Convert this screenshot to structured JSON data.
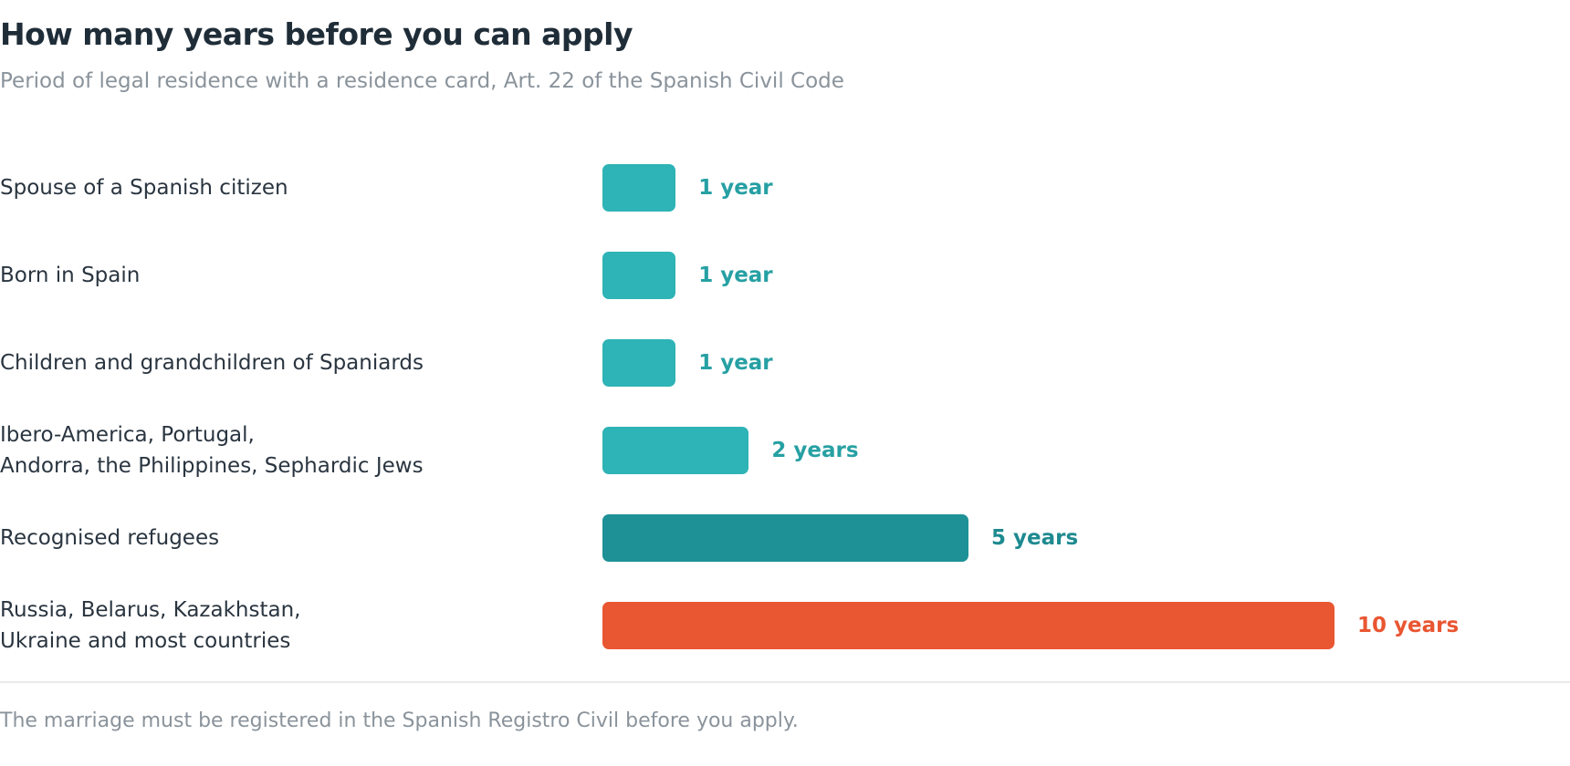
{
  "header": {
    "title": "How many years before you can apply",
    "subtitle": "Period of legal residence with a residence card, Art. 22 of the Spanish Civil Code"
  },
  "chart_data": {
    "type": "bar",
    "orientation": "horizontal",
    "categories": [
      "Spouse of a Spanish citizen",
      "Born in Spain",
      "Children and grandchildren of Spaniards",
      "Ibero-America, Portugal,\nAndorra, the Philippines, Sephardic Jews",
      "Recognised refugees",
      "Russia, Belarus, Kazakhstan,\nUkraine and most countries"
    ],
    "values": [
      1,
      1,
      1,
      2,
      5,
      10
    ],
    "value_labels": [
      "1 year",
      "1 year",
      "1 year",
      "2 years",
      "5 years",
      "10 years"
    ],
    "bar_colors": [
      "#2eb3b6",
      "#2eb3b6",
      "#2eb3b6",
      "#2eb3b6",
      "#1e9196",
      "#e95632"
    ],
    "label_colors": [
      "#26a0a3",
      "#26a0a3",
      "#26a0a3",
      "#26a0a3",
      "#1e8a90",
      "#e95632"
    ],
    "xlim": [
      0,
      10
    ],
    "grid": false,
    "legend": "none"
  },
  "footer": {
    "note": "The marriage must be registered in the Spanish Registro Civil before you apply."
  }
}
